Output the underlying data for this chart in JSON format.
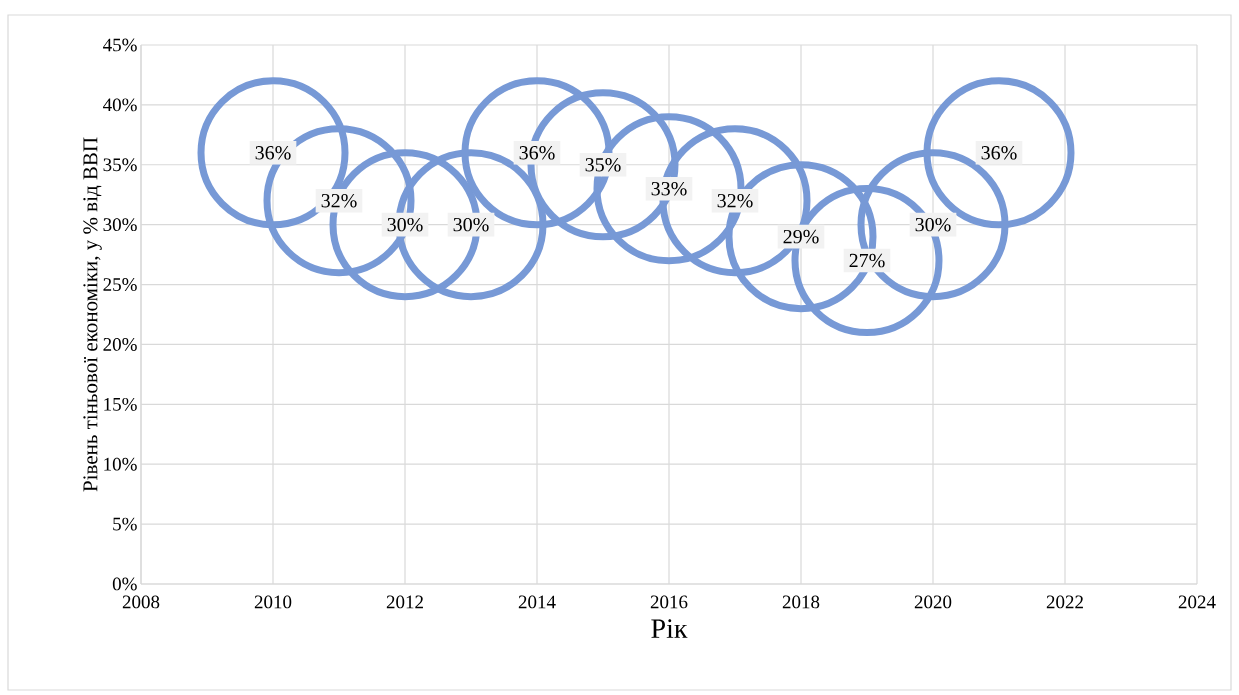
{
  "chart_data": {
    "type": "bubble",
    "xlabel": "Рік",
    "ylabel": "Рівень тіньової економіки, у % від ВВП",
    "x": [
      2010,
      2011,
      2012,
      2013,
      2014,
      2015,
      2016,
      2017,
      2018,
      2019,
      2020,
      2021
    ],
    "values": [
      36,
      32,
      30,
      30,
      36,
      35,
      33,
      32,
      29,
      27,
      30,
      36
    ],
    "sizes": [
      1,
      1,
      1,
      1,
      1,
      1,
      1,
      1,
      1,
      1,
      1,
      1
    ],
    "value_labels": [
      "36%",
      "32%",
      "30%",
      "30%",
      "36%",
      "35%",
      "33%",
      "32%",
      "29%",
      "27%",
      "30%",
      "36%"
    ],
    "color": "#7799d6",
    "xlim": [
      2008,
      2024
    ],
    "xticks": [
      2008,
      2010,
      2012,
      2014,
      2016,
      2018,
      2020,
      2022,
      2024
    ],
    "ylim": [
      0,
      45
    ],
    "yticks": [
      {
        "value": 0,
        "label": "0%"
      },
      {
        "value": 5,
        "label": "5%"
      },
      {
        "value": 10,
        "label": "10%"
      },
      {
        "value": 15,
        "label": "15%"
      },
      {
        "value": 20,
        "label": "20%"
      },
      {
        "value": 25,
        "label": "25%"
      },
      {
        "value": 30,
        "label": "30%"
      },
      {
        "value": 35,
        "label": "35%"
      },
      {
        "value": 40,
        "label": "40%"
      },
      {
        "value": 45,
        "label": "45%"
      }
    ],
    "grid": true
  }
}
